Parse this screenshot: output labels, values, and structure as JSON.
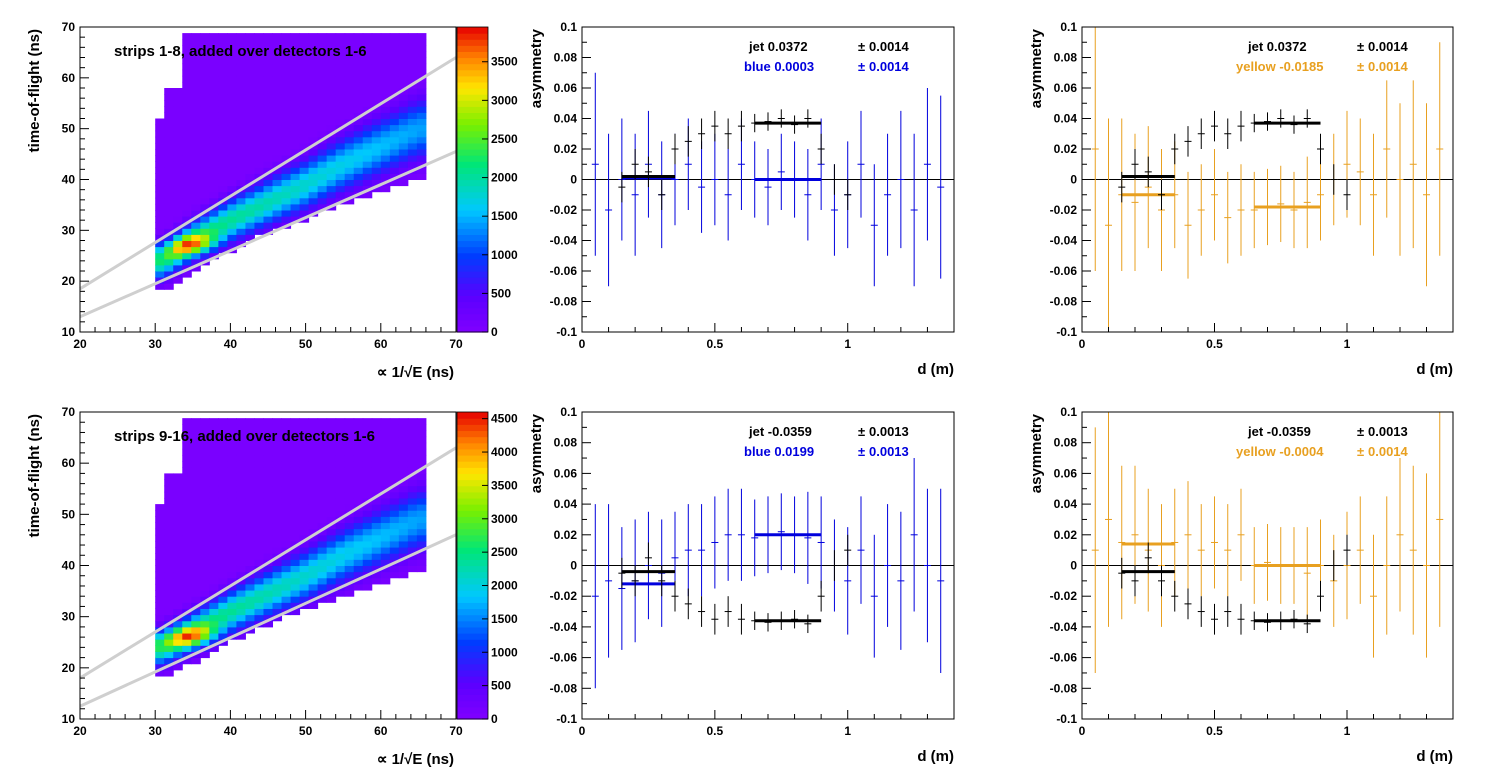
{
  "chart_data": [
    {
      "type": "heatmap",
      "label": "strips 1-8, added over detectors 1-6",
      "xlabel": "∝ 1/√E (ns)",
      "ylabel": "time-of-flight (ns)",
      "xlim": [
        20,
        70
      ],
      "ylim": [
        10,
        70
      ],
      "xticks": [
        20,
        30,
        40,
        50,
        60,
        70
      ],
      "yticks": [
        10,
        20,
        30,
        40,
        50,
        60,
        70
      ],
      "zmax": 3950,
      "zticks": [
        0,
        500,
        1000,
        1500,
        2000,
        2500,
        3000,
        3500
      ],
      "band_center": {
        "x": [
          31,
          35,
          40,
          45,
          50,
          55,
          60,
          65
        ],
        "y": [
          24,
          28,
          32,
          35.5,
          39,
          43,
          46.5,
          50
        ]
      },
      "band_peak": {
        "x": 35,
        "y": 27
      },
      "cut_lines": [
        {
          "x": [
            20,
            70
          ],
          "y": [
            18.5,
            64
          ]
        },
        {
          "x": [
            20,
            70
          ],
          "y": [
            13,
            45.5
          ]
        }
      ]
    },
    {
      "type": "scatter",
      "xlabel": "d (m)",
      "ylabel": "asymmetry",
      "xlim": [
        0,
        1.4
      ],
      "ylim": [
        -0.1,
        0.1
      ],
      "xticks": [
        0,
        0.5,
        1
      ],
      "yticks": [
        -0.1,
        -0.08,
        -0.06,
        -0.04,
        -0.02,
        0,
        0.02,
        0.04,
        0.06,
        0.08,
        0.1
      ],
      "series": [
        {
          "name": "jet",
          "color": "#000000",
          "x": [
            0.15,
            0.2,
            0.25,
            0.3,
            0.35,
            0.4,
            0.45,
            0.5,
            0.55,
            0.6,
            0.65,
            0.7,
            0.75,
            0.8,
            0.85,
            0.9,
            0.95,
            1.0
          ],
          "y": [
            -0.005,
            0.01,
            0.005,
            -0.01,
            0.02,
            0.025,
            0.03,
            0.035,
            0.03,
            0.035,
            0.037,
            0.038,
            0.04,
            0.036,
            0.04,
            0.02,
            0.0,
            -0.01
          ],
          "err": [
            0.01,
            0.01,
            0.01,
            0.01,
            0.01,
            0.01,
            0.01,
            0.01,
            0.01,
            0.01,
            0.006,
            0.006,
            0.006,
            0.006,
            0.006,
            0.01,
            0.01,
            0.01
          ],
          "fit": [
            {
              "x": [
                0.65,
                0.9
              ],
              "y": 0.037
            },
            {
              "x": [
                0.15,
                0.35
              ],
              "y": 0.002
            }
          ],
          "label": "jet  0.0372",
          "err_label": "0.0014"
        },
        {
          "name": "blue",
          "color": "#0000dd",
          "x": [
            0.05,
            0.1,
            0.15,
            0.2,
            0.25,
            0.3,
            0.35,
            0.4,
            0.45,
            0.5,
            0.55,
            0.6,
            0.65,
            0.7,
            0.75,
            0.8,
            0.85,
            0.9,
            0.95,
            1.0,
            1.05,
            1.1,
            1.15,
            1.2,
            1.25,
            1.3,
            1.35
          ],
          "y": [
            0.01,
            -0.02,
            0.0,
            -0.01,
            0.01,
            -0.01,
            0.0,
            0.01,
            -0.005,
            0.0,
            -0.01,
            0.01,
            0.0,
            -0.005,
            0.005,
            0.0,
            -0.01,
            0.01,
            -0.02,
            -0.01,
            0.01,
            -0.03,
            -0.01,
            0.0,
            -0.02,
            0.01,
            -0.005
          ],
          "err": [
            0.06,
            0.05,
            0.04,
            0.04,
            0.035,
            0.035,
            0.03,
            0.03,
            0.03,
            0.03,
            0.03,
            0.03,
            0.025,
            0.025,
            0.025,
            0.025,
            0.03,
            0.03,
            0.03,
            0.035,
            0.035,
            0.04,
            0.04,
            0.045,
            0.05,
            0.05,
            0.06
          ],
          "fit": [
            {
              "x": [
                0.15,
                0.35
              ],
              "y": 0.001
            },
            {
              "x": [
                0.65,
                0.9
              ],
              "y": 0.0
            }
          ],
          "label": "blue  0.0003",
          "err_label": "0.0014"
        }
      ]
    },
    {
      "type": "scatter",
      "xlabel": "d (m)",
      "ylabel": "asymmetry",
      "xlim": [
        0,
        1.4
      ],
      "ylim": [
        -0.1,
        0.1
      ],
      "xticks": [
        0,
        0.5,
        1
      ],
      "yticks": [
        -0.1,
        -0.08,
        -0.06,
        -0.04,
        -0.02,
        0,
        0.02,
        0.04,
        0.06,
        0.08,
        0.1
      ],
      "series": [
        {
          "name": "jet",
          "color": "#000000",
          "x": [
            0.15,
            0.2,
            0.25,
            0.3,
            0.35,
            0.4,
            0.45,
            0.5,
            0.55,
            0.6,
            0.65,
            0.7,
            0.75,
            0.8,
            0.85,
            0.9,
            0.95,
            1.0
          ],
          "y": [
            -0.005,
            0.01,
            0.005,
            -0.01,
            0.02,
            0.025,
            0.03,
            0.035,
            0.03,
            0.035,
            0.037,
            0.038,
            0.04,
            0.036,
            0.04,
            0.02,
            0.0,
            -0.01
          ],
          "err": [
            0.01,
            0.01,
            0.01,
            0.01,
            0.01,
            0.01,
            0.01,
            0.01,
            0.01,
            0.01,
            0.006,
            0.006,
            0.006,
            0.006,
            0.006,
            0.01,
            0.01,
            0.01
          ],
          "fit": [
            {
              "x": [
                0.65,
                0.9
              ],
              "y": 0.037
            },
            {
              "x": [
                0.15,
                0.35
              ],
              "y": 0.002
            }
          ],
          "label": "jet  0.0372",
          "err_label": "0.0014"
        },
        {
          "name": "yellow",
          "color": "#e8a020",
          "x": [
            0.05,
            0.1,
            0.15,
            0.2,
            0.25,
            0.3,
            0.35,
            0.4,
            0.45,
            0.5,
            0.55,
            0.6,
            0.65,
            0.7,
            0.75,
            0.8,
            0.85,
            0.9,
            0.95,
            1.0,
            1.05,
            1.1,
            1.15,
            1.2,
            1.25,
            1.3,
            1.35
          ],
          "y": [
            0.02,
            -0.03,
            -0.01,
            -0.015,
            -0.005,
            -0.02,
            -0.01,
            -0.03,
            -0.02,
            -0.01,
            -0.025,
            -0.02,
            -0.02,
            -0.018,
            -0.016,
            -0.02,
            -0.015,
            -0.01,
            0.0,
            0.01,
            0.005,
            -0.01,
            0.02,
            0.0,
            0.01,
            -0.01,
            0.02
          ],
          "err": [
            0.08,
            0.07,
            0.05,
            0.045,
            0.04,
            0.04,
            0.035,
            0.035,
            0.03,
            0.03,
            0.03,
            0.03,
            0.025,
            0.025,
            0.025,
            0.025,
            0.03,
            0.03,
            0.03,
            0.035,
            0.035,
            0.04,
            0.045,
            0.05,
            0.055,
            0.06,
            0.07
          ],
          "fit": [
            {
              "x": [
                0.15,
                0.35
              ],
              "y": -0.01
            },
            {
              "x": [
                0.65,
                0.9
              ],
              "y": -0.018
            }
          ],
          "label": "yellow -0.0185",
          "err_label": "0.0014"
        }
      ]
    },
    {
      "type": "heatmap",
      "label": "strips 9-16, added over detectors 1-6",
      "xlabel": "∝ 1/√E (ns)",
      "ylabel": "time-of-flight (ns)",
      "xlim": [
        20,
        70
      ],
      "ylim": [
        10,
        70
      ],
      "xticks": [
        20,
        30,
        40,
        50,
        60,
        70
      ],
      "yticks": [
        10,
        20,
        30,
        40,
        50,
        60,
        70
      ],
      "zmax": 4600,
      "zticks": [
        0,
        500,
        1000,
        1500,
        2000,
        2500,
        3000,
        3500,
        4000,
        4500
      ],
      "band_center": {
        "x": [
          31,
          35,
          40,
          45,
          50,
          55,
          60,
          65
        ],
        "y": [
          24,
          27,
          31,
          34.5,
          38,
          42,
          45.5,
          49
        ]
      },
      "band_peak": {
        "x": 35,
        "y": 26
      },
      "cut_lines": [
        {
          "x": [
            20,
            70
          ],
          "y": [
            18,
            63
          ]
        },
        {
          "x": [
            20,
            70
          ],
          "y": [
            12.5,
            46
          ]
        }
      ]
    },
    {
      "type": "scatter",
      "xlabel": "d (m)",
      "ylabel": "asymmetry",
      "xlim": [
        0,
        1.4
      ],
      "ylim": [
        -0.1,
        0.1
      ],
      "xticks": [
        0,
        0.5,
        1
      ],
      "yticks": [
        -0.1,
        -0.08,
        -0.06,
        -0.04,
        -0.02,
        0,
        0.02,
        0.04,
        0.06,
        0.08,
        0.1
      ],
      "series": [
        {
          "name": "jet",
          "color": "#000000",
          "x": [
            0.15,
            0.2,
            0.25,
            0.3,
            0.35,
            0.4,
            0.45,
            0.5,
            0.55,
            0.6,
            0.65,
            0.7,
            0.75,
            0.8,
            0.85,
            0.9,
            0.95,
            1.0
          ],
          "y": [
            -0.005,
            -0.01,
            0.005,
            -0.01,
            -0.02,
            -0.025,
            -0.03,
            -0.035,
            -0.03,
            -0.035,
            -0.036,
            -0.037,
            -0.036,
            -0.035,
            -0.038,
            -0.02,
            0.0,
            0.01
          ],
          "err": [
            0.01,
            0.01,
            0.01,
            0.01,
            0.01,
            0.01,
            0.01,
            0.01,
            0.01,
            0.01,
            0.006,
            0.006,
            0.006,
            0.006,
            0.006,
            0.01,
            0.01,
            0.01
          ],
          "fit": [
            {
              "x": [
                0.65,
                0.9
              ],
              "y": -0.036
            },
            {
              "x": [
                0.15,
                0.35
              ],
              "y": -0.004
            }
          ],
          "label": "jet -0.0359",
          "err_label": "0.0013"
        },
        {
          "name": "blue",
          "color": "#0000dd",
          "x": [
            0.05,
            0.1,
            0.15,
            0.2,
            0.25,
            0.3,
            0.35,
            0.4,
            0.45,
            0.5,
            0.55,
            0.6,
            0.65,
            0.7,
            0.75,
            0.8,
            0.85,
            0.9,
            0.95,
            1.0,
            1.05,
            1.1,
            1.15,
            1.2,
            1.25,
            1.3,
            1.35
          ],
          "y": [
            -0.02,
            -0.01,
            -0.015,
            -0.01,
            0.0,
            -0.005,
            0.005,
            0.01,
            0.01,
            0.015,
            0.02,
            0.02,
            0.018,
            0.02,
            0.022,
            0.02,
            0.018,
            0.015,
            0.0,
            -0.01,
            0.01,
            -0.02,
            0.0,
            -0.01,
            0.02,
            0.0,
            -0.01
          ],
          "err": [
            0.06,
            0.05,
            0.04,
            0.04,
            0.035,
            0.035,
            0.03,
            0.03,
            0.03,
            0.03,
            0.03,
            0.03,
            0.025,
            0.025,
            0.025,
            0.025,
            0.03,
            0.03,
            0.03,
            0.035,
            0.035,
            0.04,
            0.04,
            0.045,
            0.05,
            0.05,
            0.06
          ],
          "fit": [
            {
              "x": [
                0.15,
                0.35
              ],
              "y": -0.012
            },
            {
              "x": [
                0.65,
                0.9
              ],
              "y": 0.02
            }
          ],
          "label": "blue  0.0199",
          "err_label": "0.0013"
        }
      ]
    },
    {
      "type": "scatter",
      "xlabel": "d (m)",
      "ylabel": "asymmetry",
      "xlim": [
        0,
        1.4
      ],
      "ylim": [
        -0.1,
        0.1
      ],
      "xticks": [
        0,
        0.5,
        1
      ],
      "yticks": [
        -0.1,
        -0.08,
        -0.06,
        -0.04,
        -0.02,
        0,
        0.02,
        0.04,
        0.06,
        0.08,
        0.1
      ],
      "series": [
        {
          "name": "jet",
          "color": "#000000",
          "x": [
            0.15,
            0.2,
            0.25,
            0.3,
            0.35,
            0.4,
            0.45,
            0.5,
            0.55,
            0.6,
            0.65,
            0.7,
            0.75,
            0.8,
            0.85,
            0.9,
            0.95,
            1.0
          ],
          "y": [
            -0.005,
            -0.01,
            0.005,
            -0.01,
            -0.02,
            -0.025,
            -0.03,
            -0.035,
            -0.03,
            -0.035,
            -0.036,
            -0.037,
            -0.036,
            -0.035,
            -0.038,
            -0.02,
            0.0,
            0.01
          ],
          "err": [
            0.01,
            0.01,
            0.01,
            0.01,
            0.01,
            0.01,
            0.01,
            0.01,
            0.01,
            0.01,
            0.006,
            0.006,
            0.006,
            0.006,
            0.006,
            0.01,
            0.01,
            0.01
          ],
          "fit": [
            {
              "x": [
                0.65,
                0.9
              ],
              "y": -0.036
            },
            {
              "x": [
                0.15,
                0.35
              ],
              "y": -0.004
            }
          ],
          "label": "jet -0.0359",
          "err_label": "0.0013"
        },
        {
          "name": "yellow",
          "color": "#e8a020",
          "x": [
            0.05,
            0.1,
            0.15,
            0.2,
            0.25,
            0.3,
            0.35,
            0.4,
            0.45,
            0.5,
            0.55,
            0.6,
            0.65,
            0.7,
            0.75,
            0.8,
            0.85,
            0.9,
            0.95,
            1.0,
            1.05,
            1.1,
            1.15,
            1.2,
            1.25,
            1.3,
            1.35
          ],
          "y": [
            0.01,
            0.03,
            0.015,
            0.02,
            0.01,
            0.0,
            0.015,
            0.02,
            0.01,
            0.015,
            0.01,
            0.02,
            0.0,
            0.002,
            0.0,
            0.0,
            -0.005,
            0.0,
            -0.01,
            0.0,
            0.01,
            -0.02,
            0.0,
            0.02,
            0.01,
            0.0,
            0.03
          ],
          "err": [
            0.08,
            0.07,
            0.05,
            0.045,
            0.04,
            0.04,
            0.035,
            0.035,
            0.03,
            0.03,
            0.03,
            0.03,
            0.025,
            0.025,
            0.025,
            0.025,
            0.03,
            0.03,
            0.03,
            0.035,
            0.035,
            0.04,
            0.045,
            0.05,
            0.055,
            0.06,
            0.07
          ],
          "fit": [
            {
              "x": [
                0.15,
                0.35
              ],
              "y": 0.014
            },
            {
              "x": [
                0.65,
                0.9
              ],
              "y": 0.0
            }
          ],
          "label": "yellow -0.0004",
          "err_label": "0.0014"
        }
      ]
    }
  ]
}
